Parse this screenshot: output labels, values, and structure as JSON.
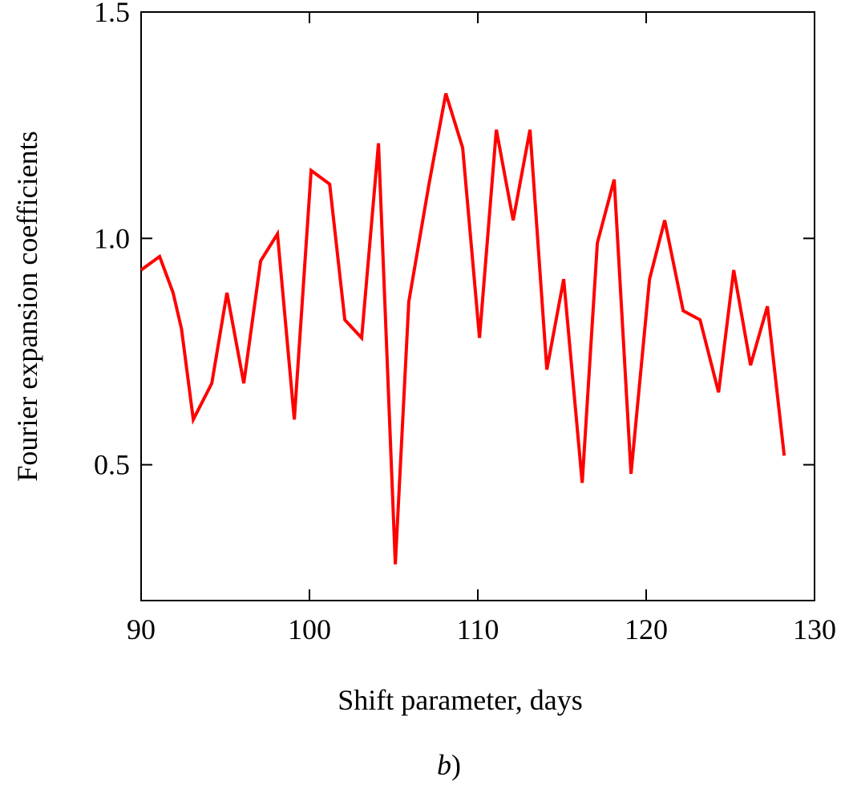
{
  "chart_data": {
    "type": "line",
    "title": "",
    "xlabel": "Shift parameter, days",
    "ylabel": "Fourier expansion coefficients",
    "caption_letter": "b",
    "caption_suffix": ")",
    "xlim": [
      90,
      130
    ],
    "ylim": [
      0.2,
      1.5
    ],
    "xticks": [
      90,
      100,
      110,
      120,
      130
    ],
    "xtick_labels": [
      "90",
      "100",
      "110",
      "120",
      "130"
    ],
    "yticks": [
      0.5,
      1.0,
      1.5
    ],
    "ytick_labels": [
      "0.5",
      "1.0",
      "1.5"
    ],
    "grid": false,
    "series": [
      {
        "color": "#ff0000",
        "x": [
          90,
          91.1,
          91.9,
          92.4,
          93.1,
          94.2,
          95.1,
          96.1,
          97.1,
          98.1,
          99.1,
          100.1,
          101.2,
          102.1,
          103.1,
          104.1,
          105.1,
          105.9,
          107.1,
          108.1,
          109.1,
          110.1,
          111.1,
          112.1,
          113.1,
          114.1,
          115.1,
          116.2,
          117.1,
          118.1,
          119.1,
          120.2,
          121.1,
          122.2,
          123.2,
          124.3,
          125.2,
          126.2,
          127.2,
          128.2
        ],
        "y": [
          0.93,
          0.96,
          0.88,
          0.8,
          0.6,
          0.68,
          0.88,
          0.68,
          0.95,
          1.01,
          0.6,
          1.15,
          1.12,
          0.82,
          0.78,
          1.21,
          0.28,
          0.86,
          1.12,
          1.32,
          1.2,
          0.78,
          1.24,
          1.04,
          1.24,
          0.71,
          0.91,
          0.46,
          0.99,
          1.13,
          0.48,
          0.91,
          1.04,
          0.84,
          0.82,
          0.66,
          0.93,
          0.72,
          0.85,
          0.52
        ]
      }
    ]
  },
  "colors": {
    "axes": "#000000",
    "series": "#ff0000",
    "background": "#ffffff"
  }
}
